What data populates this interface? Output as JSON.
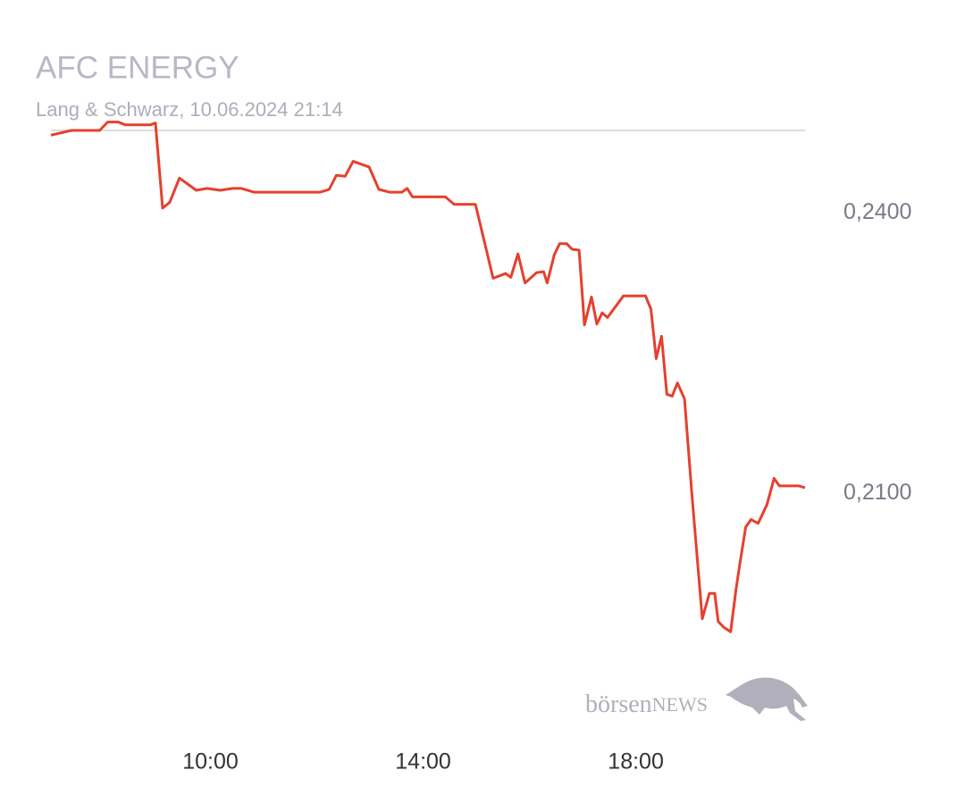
{
  "chart_data": {
    "type": "line",
    "title": "AFC ENERGY",
    "subtitle": "Lang & Schwarz, 10.06.2024 21:14",
    "x": [
      "07:00",
      "07:23",
      "07:55",
      "08:04",
      "08:16",
      "08:24",
      "08:52",
      "08:58",
      "09:06",
      "09:14",
      "09:25",
      "09:44",
      "09:56",
      "10:11",
      "10:25",
      "10:35",
      "10:49",
      "12:04",
      "12:14",
      "12:22",
      "12:32",
      "12:41",
      "12:59",
      "13:10",
      "13:22",
      "13:36",
      "13:42",
      "13:48",
      "14:25",
      "14:35",
      "14:59",
      "15:19",
      "15:33",
      "15:39",
      "15:47",
      "15:55",
      "16:08",
      "16:16",
      "16:20",
      "16:28",
      "16:34",
      "16:42",
      "16:48",
      "16:56",
      "17:02",
      "17:10",
      "17:16",
      "17:22",
      "17:28",
      "17:46",
      "18:11",
      "18:17",
      "18:23",
      "18:29",
      "18:35",
      "18:41",
      "18:47",
      "18:55",
      "19:03",
      "19:15",
      "19:23",
      "19:29",
      "19:33",
      "19:39",
      "19:47",
      "19:53",
      "19:57",
      "20:04",
      "20:10",
      "20:18",
      "20:28",
      "20:36",
      "20:42",
      "21:04",
      "21:11"
    ],
    "values": [
      0.2483,
      0.2488,
      0.2488,
      0.2497,
      0.2497,
      0.2494,
      0.2494,
      0.2496,
      0.2405,
      0.2411,
      0.2437,
      0.2424,
      0.2426,
      0.2424,
      0.2426,
      0.2426,
      0.2422,
      0.2422,
      0.2425,
      0.244,
      0.2439,
      0.2455,
      0.2449,
      0.2425,
      0.2422,
      0.2422,
      0.2426,
      0.2417,
      0.2417,
      0.2409,
      0.2409,
      0.233,
      0.2335,
      0.2331,
      0.2356,
      0.2325,
      0.2336,
      0.2337,
      0.2325,
      0.2355,
      0.2367,
      0.2367,
      0.2361,
      0.236,
      0.228,
      0.231,
      0.2281,
      0.2293,
      0.2288,
      0.2311,
      0.2311,
      0.2297,
      0.2244,
      0.2268,
      0.2206,
      0.2204,
      0.2218,
      0.2201,
      0.2102,
      0.1966,
      0.1993,
      0.1993,
      0.1963,
      0.1957,
      0.1952,
      0.1997,
      0.2022,
      0.2064,
      0.2072,
      0.2068,
      0.2088,
      0.2116,
      0.2108,
      0.2108,
      0.2106
    ],
    "color": "#e5402f",
    "reference_line": 0.2488,
    "reference_color": "#dcdce0",
    "xlim": [
      "07:00",
      "21:14"
    ],
    "xticks": [
      "10:00",
      "14:00",
      "18:00"
    ],
    "ylim": [
      0.185,
      0.251
    ],
    "yticks": [
      {
        "value": 0.24,
        "label": "0,2400"
      },
      {
        "value": 0.21,
        "label": "0,2100"
      }
    ],
    "logo": {
      "part1": "börsen",
      "part2": "NEWS"
    }
  }
}
